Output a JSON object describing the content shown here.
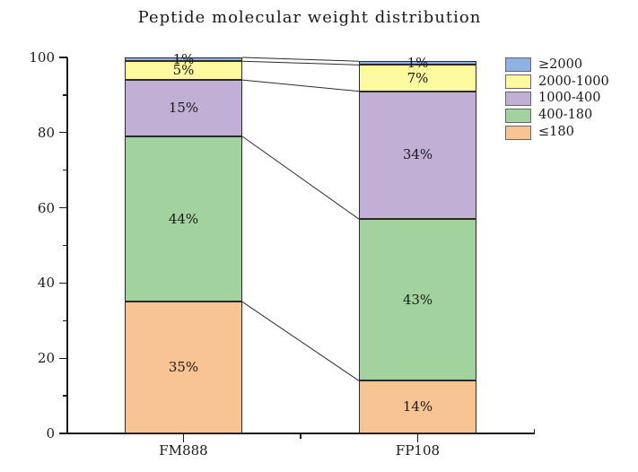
{
  "title": "Peptide molecular weight distribution",
  "chart_data": {
    "type": "bar",
    "stacked": true,
    "title": "Peptide molecular weight distribution",
    "categories": [
      "FM888",
      "FP108"
    ],
    "series": [
      {
        "name": "≤180",
        "color": "#F9C493",
        "values": [
          35,
          14
        ]
      },
      {
        "name": "400-180",
        "color": "#A2D39E",
        "values": [
          44,
          43
        ]
      },
      {
        "name": "1000-400",
        "color": "#C1AFD6",
        "values": [
          15,
          34
        ]
      },
      {
        "name": "2000-1000",
        "color": "#FCF99F",
        "values": [
          5,
          7
        ]
      },
      {
        "name": "≥2000",
        "color": "#8FB1E4",
        "values": [
          1,
          1
        ]
      }
    ],
    "segment_labels": [
      [
        "35%",
        "44%",
        "15%",
        "5%",
        "1%"
      ],
      [
        "14%",
        "43%",
        "34%",
        "7%",
        "1%"
      ]
    ],
    "legend": [
      "≥2000",
      "2000-1000",
      "1000-400",
      "400-180",
      "≤180"
    ],
    "legend_position": "top-right",
    "xlabel": "",
    "ylabel": "",
    "ylim": [
      0,
      100
    ],
    "yticks": [
      0,
      20,
      40,
      60,
      80,
      100
    ],
    "yminorticks": [
      10,
      30,
      50,
      70,
      90
    ],
    "grid": false,
    "connectors": true,
    "axis_color": "#1a1a1a",
    "segment_border_color": "#2b2b2b"
  }
}
